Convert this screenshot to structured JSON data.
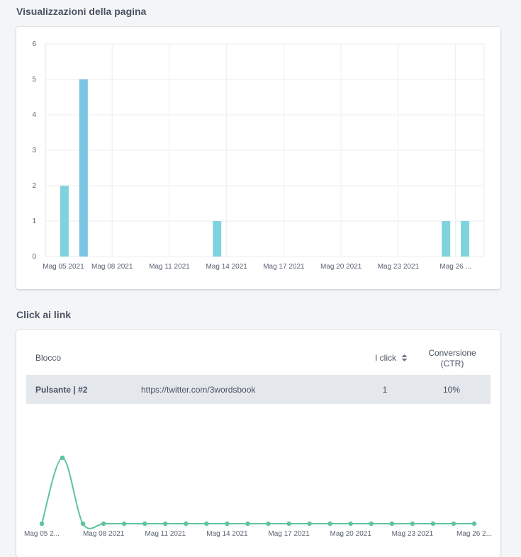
{
  "views": {
    "title": "Visualizzazioni della pagina",
    "chart_data": {
      "type": "bar",
      "x": [
        "2021-05-05",
        "2021-05-06",
        "2021-05-13",
        "2021-05-25",
        "2021-05-26"
      ],
      "values": [
        2,
        5,
        1,
        1,
        1
      ],
      "ylim": [
        0,
        6
      ],
      "yticks": [
        0,
        1,
        2,
        3,
        4,
        5,
        6
      ],
      "xtick_labels": [
        "Mag 05 2021",
        "Mag 08 2021",
        "Mag 11 2021",
        "Mag 14 2021",
        "Mag 17 2021",
        "Mag 20 2021",
        "Mag 23 2021",
        "Mag 26 ..."
      ],
      "xlim": [
        "2021-05-04",
        "2021-05-27"
      ],
      "grid": true,
      "bar_color": "#7fd3dc",
      "bar_highlight_color": "#7bc4e2"
    }
  },
  "clicks": {
    "title": "Click ai link",
    "table": {
      "col_block": "Blocco",
      "col_clicks": "I click",
      "col_conv_line1": "Conversione",
      "col_conv_line2": "(CTR)",
      "sort_icon": "sort-arrows-icon",
      "rows": [
        {
          "block": "Pulsante | #2",
          "url": "https://twitter.com/3wordsbook",
          "clicks": "1",
          "ctr": "10%"
        }
      ]
    },
    "chart_data": {
      "type": "line",
      "x": [
        "2021-05-05",
        "2021-05-06",
        "2021-05-07",
        "2021-05-08",
        "2021-05-09",
        "2021-05-10",
        "2021-05-11",
        "2021-05-12",
        "2021-05-13",
        "2021-05-14",
        "2021-05-15",
        "2021-05-16",
        "2021-05-17",
        "2021-05-18",
        "2021-05-19",
        "2021-05-20",
        "2021-05-21",
        "2021-05-22",
        "2021-05-23",
        "2021-05-24",
        "2021-05-25",
        "2021-05-26"
      ],
      "values": [
        0,
        1,
        0,
        0,
        0,
        0,
        0,
        0,
        0,
        0,
        0,
        0,
        0,
        0,
        0,
        0,
        0,
        0,
        0,
        0,
        0,
        0
      ],
      "xtick_labels": [
        "Mag 05 2...",
        "Mag 08 2021",
        "Mag 11 2021",
        "Mag 14 2021",
        "Mag 17 2021",
        "Mag 20 2021",
        "Mag 23 2021",
        "Mag 26 2..."
      ],
      "color": "#5ec49b"
    }
  }
}
